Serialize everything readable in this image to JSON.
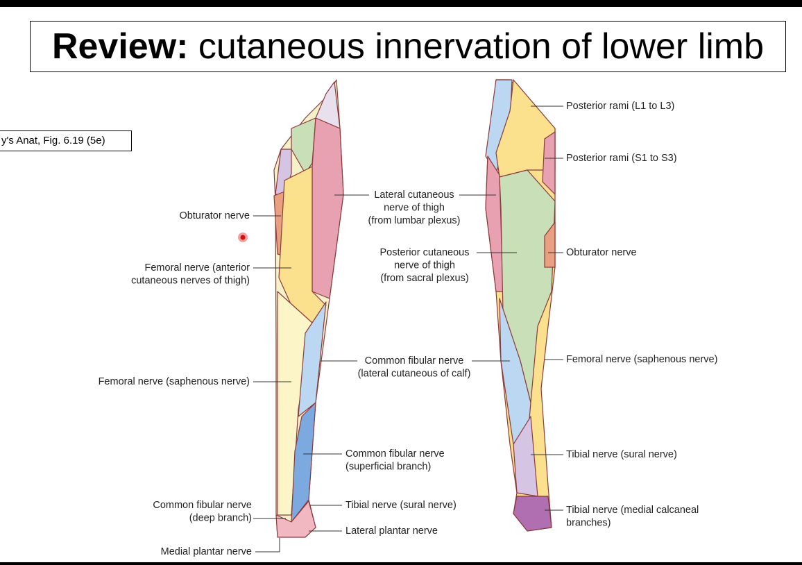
{
  "header": {
    "title_bold": "Review:",
    "title_rest": "cutaneous innervation of lower limb"
  },
  "citation": "y's Anat, Fig. 6.19 (5e)",
  "labels": [
    {
      "lines": [
        "Obturator nerve"
      ]
    },
    {
      "lines": [
        "Femoral nerve (anterior",
        "cutaneous nerves of thigh)"
      ]
    },
    {
      "lines": [
        "Lateral cutaneous",
        "nerve of thigh",
        "(from lumbar plexus)"
      ]
    },
    {
      "lines": [
        "Posterior cutaneous",
        "nerve of thigh",
        "(from sacral plexus)"
      ]
    },
    {
      "lines": [
        "Common fibular nerve",
        "(lateral cutaneous of calf)"
      ]
    },
    {
      "lines": [
        "Femoral nerve (saphenous nerve)"
      ]
    },
    {
      "lines": [
        "Common fibular nerve",
        "(superficial branch)"
      ]
    },
    {
      "lines": [
        "Tibial nerve (sural nerve)"
      ]
    },
    {
      "lines": [
        "Common fibular nerve",
        "(deep branch)"
      ]
    },
    {
      "lines": [
        "Lateral plantar nerve"
      ]
    },
    {
      "lines": [
        "Medial plantar nerve"
      ]
    },
    {
      "lines": [
        "Posterior rami (L1 to L3)"
      ]
    },
    {
      "lines": [
        "Posterior rami (S1 to S3)"
      ]
    },
    {
      "lines": [
        "Obturator nerve"
      ]
    },
    {
      "lines": [
        "Femoral nerve (saphenous nerve)"
      ]
    },
    {
      "lines": [
        "Tibial nerve (sural nerve)"
      ]
    },
    {
      "lines": [
        "Tibial nerve (medial calcaneal",
        "branches)"
      ]
    }
  ]
}
